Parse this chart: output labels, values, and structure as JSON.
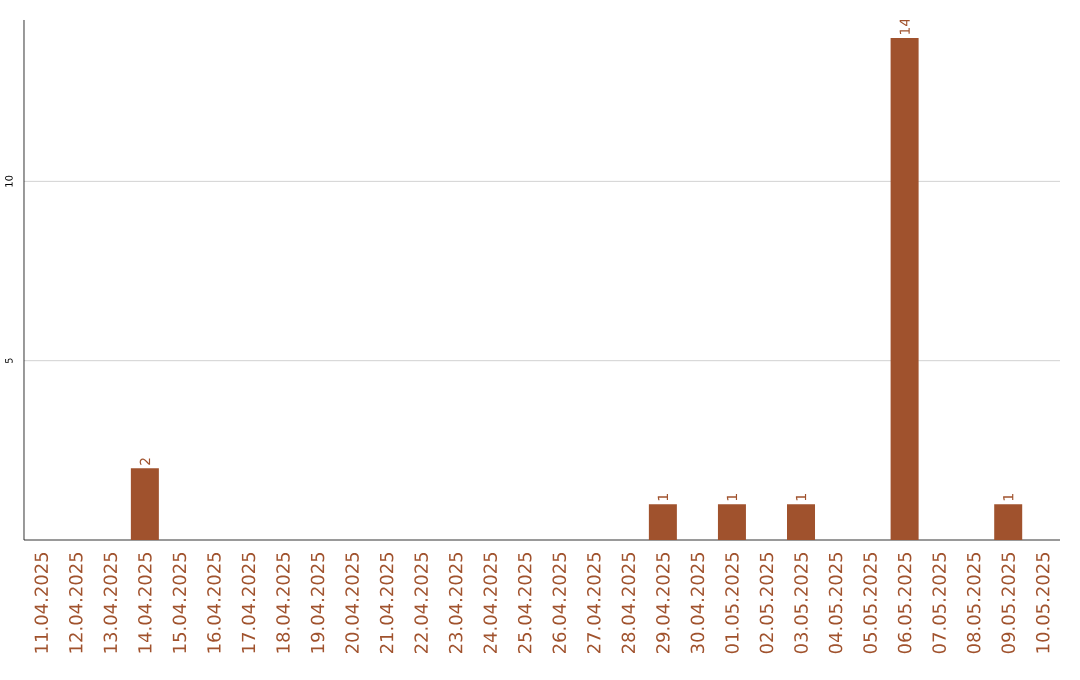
{
  "chart_data": {
    "type": "bar",
    "categories": [
      "11.04.2025",
      "12.04.2025",
      "13.04.2025",
      "14.04.2025",
      "15.04.2025",
      "16.04.2025",
      "17.04.2025",
      "18.04.2025",
      "19.04.2025",
      "20.04.2025",
      "21.04.2025",
      "22.04.2025",
      "23.04.2025",
      "24.04.2025",
      "25.04.2025",
      "26.04.2025",
      "27.04.2025",
      "28.04.2025",
      "29.04.2025",
      "30.04.2025",
      "01.05.2025",
      "02.05.2025",
      "03.05.2025",
      "04.05.2025",
      "05.05.2025",
      "06.05.2025",
      "07.05.2025",
      "08.05.2025",
      "09.05.2025",
      "10.05.2025"
    ],
    "values": [
      0,
      0,
      0,
      2,
      0,
      0,
      0,
      0,
      0,
      0,
      0,
      0,
      0,
      0,
      0,
      0,
      0,
      0,
      1,
      0,
      1,
      0,
      1,
      0,
      0,
      14,
      0,
      0,
      1,
      0
    ],
    "value_labels": [
      null,
      null,
      null,
      "2",
      null,
      null,
      null,
      null,
      null,
      null,
      null,
      null,
      null,
      null,
      null,
      null,
      null,
      null,
      "1",
      null,
      "1",
      null,
      "1",
      null,
      null,
      "14",
      null,
      null,
      "1",
      null
    ],
    "color": "#a0522d",
    "ylim": [
      0,
      14.5
    ],
    "yticks": [
      5,
      10
    ],
    "grid": "y"
  }
}
